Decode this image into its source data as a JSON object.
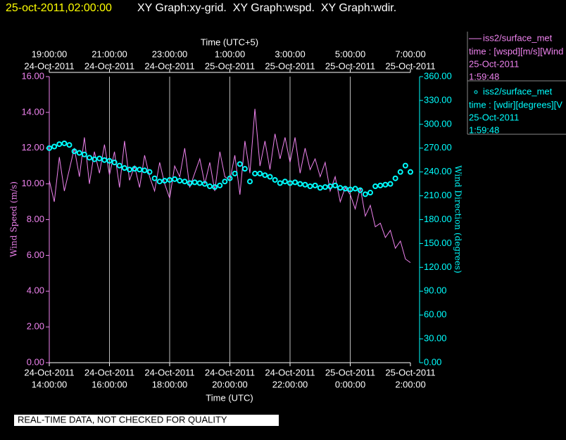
{
  "chart_data": {
    "type": "line",
    "timestamp": "25-oct-2011,02:00:00",
    "title": "XY Graph:xy-grid.  XY Graph:wspd.  XY Graph:wdir.",
    "xlabel": "Time (UTC)",
    "x2label": "Time (UTC+5)",
    "ylabel": "Wind Speed (m/s)",
    "y2label": "Wind Direction (degrees)",
    "footer": "REAL-TIME DATA, NOT CHECKED FOR QUALITY",
    "grid": "x",
    "xlim": [
      "2011-10-24T14:00",
      "2011-10-25T02:00"
    ],
    "xticks": [
      {
        "value": "2011-10-24T14:00",
        "label": [
          "24-Oct-2011",
          "14:00:00"
        ]
      },
      {
        "value": "2011-10-24T16:00",
        "label": [
          "24-Oct-2011",
          "16:00:00"
        ]
      },
      {
        "value": "2011-10-24T18:00",
        "label": [
          "24-Oct-2011",
          "18:00:00"
        ]
      },
      {
        "value": "2011-10-24T20:00",
        "label": [
          "24-Oct-2011",
          "20:00:00"
        ]
      },
      {
        "value": "2011-10-24T22:00",
        "label": [
          "24-Oct-2011",
          "22:00:00"
        ]
      },
      {
        "value": "2011-10-25T00:00",
        "label": [
          "25-Oct-2011",
          "0:00:00"
        ]
      },
      {
        "value": "2011-10-25T02:00",
        "label": [
          "25-Oct-2011",
          "2:00:00"
        ]
      }
    ],
    "x2ticks": [
      {
        "value": "2011-10-24T14:00",
        "label": [
          "19:00:00",
          "24-Oct-2011"
        ]
      },
      {
        "value": "2011-10-24T16:00",
        "label": [
          "21:00:00",
          "24-Oct-2011"
        ]
      },
      {
        "value": "2011-10-24T18:00",
        "label": [
          "23:00:00",
          "24-Oct-2011"
        ]
      },
      {
        "value": "2011-10-24T20:00",
        "label": [
          "1:00:00",
          "25-Oct-2011"
        ]
      },
      {
        "value": "2011-10-24T22:00",
        "label": [
          "3:00:00",
          "25-Oct-2011"
        ]
      },
      {
        "value": "2011-10-25T00:00",
        "label": [
          "5:00:00",
          "25-Oct-2011"
        ]
      },
      {
        "value": "2011-10-25T02:00",
        "label": [
          "7:00:00",
          "25-Oct-2011"
        ]
      }
    ],
    "ylim": [
      0,
      16
    ],
    "yticks": [
      {
        "value": 0,
        "label": "0.00"
      },
      {
        "value": 2,
        "label": "2.00"
      },
      {
        "value": 4,
        "label": "4.00"
      },
      {
        "value": 6,
        "label": "6.00"
      },
      {
        "value": 8,
        "label": "8.00"
      },
      {
        "value": 10,
        "label": "10.00"
      },
      {
        "value": 12,
        "label": "12.00"
      },
      {
        "value": 14,
        "label": "14.00"
      },
      {
        "value": 16,
        "label": "16.00"
      }
    ],
    "y2lim": [
      0,
      360
    ],
    "y2ticks": [
      {
        "value": 0,
        "label": "0.00"
      },
      {
        "value": 30,
        "label": "30.00"
      },
      {
        "value": 60,
        "label": "60.00"
      },
      {
        "value": 90,
        "label": "90.00"
      },
      {
        "value": 120,
        "label": "120.00"
      },
      {
        "value": 150,
        "label": "150.00"
      },
      {
        "value": 180,
        "label": "180.00"
      },
      {
        "value": 210,
        "label": "210.00"
      },
      {
        "value": 240,
        "label": "240.00"
      },
      {
        "value": 270,
        "label": "270.00"
      },
      {
        "value": 300,
        "label": "300.00"
      },
      {
        "value": 330,
        "label": "330.00"
      },
      {
        "value": 360,
        "label": "360.00"
      }
    ],
    "x": [
      "2011-10-24T14:00",
      "2011-10-24T14:10",
      "2011-10-24T14:20",
      "2011-10-24T14:30",
      "2011-10-24T14:40",
      "2011-10-24T14:50",
      "2011-10-24T15:00",
      "2011-10-24T15:10",
      "2011-10-24T15:20",
      "2011-10-24T15:30",
      "2011-10-24T15:40",
      "2011-10-24T15:50",
      "2011-10-24T16:00",
      "2011-10-24T16:10",
      "2011-10-24T16:20",
      "2011-10-24T16:30",
      "2011-10-24T16:40",
      "2011-10-24T16:50",
      "2011-10-24T17:00",
      "2011-10-24T17:10",
      "2011-10-24T17:20",
      "2011-10-24T17:30",
      "2011-10-24T17:40",
      "2011-10-24T17:50",
      "2011-10-24T18:00",
      "2011-10-24T18:10",
      "2011-10-24T18:20",
      "2011-10-24T18:30",
      "2011-10-24T18:40",
      "2011-10-24T18:50",
      "2011-10-24T19:00",
      "2011-10-24T19:10",
      "2011-10-24T19:20",
      "2011-10-24T19:30",
      "2011-10-24T19:40",
      "2011-10-24T19:50",
      "2011-10-24T20:00",
      "2011-10-24T20:10",
      "2011-10-24T20:20",
      "2011-10-24T20:30",
      "2011-10-24T20:40",
      "2011-10-24T20:50",
      "2011-10-24T21:00",
      "2011-10-24T21:10",
      "2011-10-24T21:20",
      "2011-10-24T21:30",
      "2011-10-24T21:40",
      "2011-10-24T21:50",
      "2011-10-24T22:00",
      "2011-10-24T22:10",
      "2011-10-24T22:20",
      "2011-10-24T22:30",
      "2011-10-24T22:40",
      "2011-10-24T22:50",
      "2011-10-24T23:00",
      "2011-10-24T23:10",
      "2011-10-24T23:20",
      "2011-10-24T23:30",
      "2011-10-24T23:40",
      "2011-10-24T23:50",
      "2011-10-25T00:00",
      "2011-10-25T00:10",
      "2011-10-25T00:20",
      "2011-10-25T00:30",
      "2011-10-25T00:40",
      "2011-10-25T00:50",
      "2011-10-25T01:00",
      "2011-10-25T01:10",
      "2011-10-25T01:20",
      "2011-10-25T01:30",
      "2011-10-25T01:40",
      "2011-10-25T01:50",
      "2011-10-25T02:00"
    ],
    "series": [
      {
        "name": "iss2/surface_met",
        "legend_lines": [
          "time : [wspd][m/s][Wind",
          "25-Oct-2011",
          "1:59:48"
        ],
        "color": "#ee82ee",
        "style": "line",
        "values": [
          10.2,
          9.0,
          11.5,
          9.6,
          10.8,
          12.0,
          10.4,
          12.6,
          10.0,
          11.8,
          10.6,
          12.2,
          10.5,
          11.8,
          9.8,
          12.4,
          10.2,
          11.0,
          9.8,
          11.6,
          10.4,
          9.6,
          11.2,
          10.0,
          9.2,
          11.0,
          10.4,
          12.0,
          9.8,
          10.6,
          11.4,
          10.0,
          11.2,
          9.6,
          11.8,
          10.4,
          10.2,
          11.6,
          9.4,
          12.4,
          10.6,
          14.2,
          11.0,
          12.4,
          10.8,
          12.8,
          11.4,
          12.6,
          11.2,
          12.6,
          10.6,
          12.0,
          10.8,
          11.4,
          10.4,
          11.2,
          9.6,
          10.4,
          9.0,
          9.8,
          9.4,
          8.6,
          9.8,
          8.2,
          8.8,
          7.6,
          7.8,
          7.0,
          7.4,
          6.4,
          6.8,
          5.8,
          5.6
        ]
      },
      {
        "name": "iss2/surface_met",
        "legend_lines": [
          "time : [wdir][degrees][V",
          "25-Oct-2011",
          "1:59:48"
        ],
        "color": "#00ffff",
        "style": "markers",
        "axis": "y2",
        "values": [
          270,
          272,
          275,
          276,
          274,
          266,
          264,
          262,
          258,
          256,
          257,
          255,
          254,
          252,
          248,
          245,
          243,
          244,
          243,
          242,
          240,
          232,
          228,
          229,
          230,
          231,
          229,
          228,
          226,
          227,
          226,
          225,
          222,
          221,
          223,
          228,
          232,
          238,
          250,
          244,
          228,
          238,
          238,
          236,
          234,
          230,
          226,
          228,
          226,
          227,
          225,
          224,
          222,
          223,
          220,
          221,
          222,
          223,
          220,
          219,
          218,
          219,
          217,
          212,
          214,
          222,
          223,
          224,
          225,
          232,
          240,
          248,
          240
        ]
      }
    ]
  }
}
